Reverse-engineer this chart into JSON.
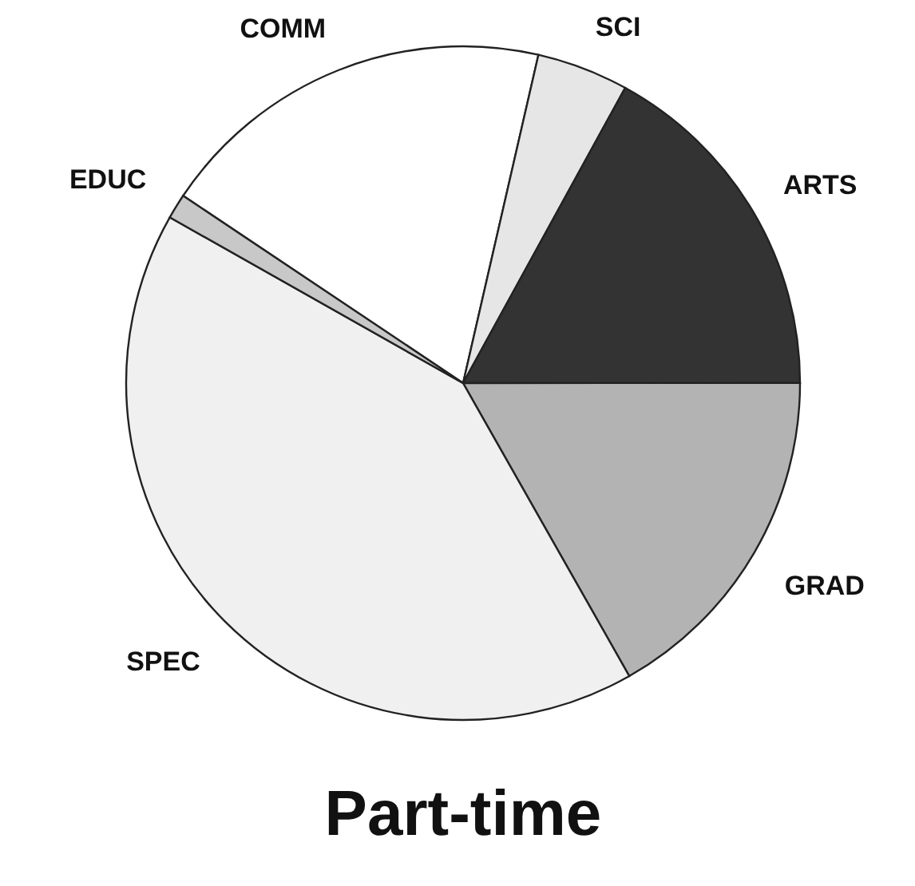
{
  "chart_data": {
    "type": "pie",
    "title": "Part-time",
    "categories": [
      "COMM",
      "SCI",
      "ARTS",
      "GRAD",
      "SPEC",
      "EDUC"
    ],
    "values": [
      19.2,
      4.4,
      17.0,
      16.8,
      41.4,
      1.2
    ],
    "colors": [
      "#ffffff",
      "#e6e6e6",
      "#333333",
      "#b3b3b3",
      "#f0f0f0",
      "#c8c8c8"
    ]
  }
}
